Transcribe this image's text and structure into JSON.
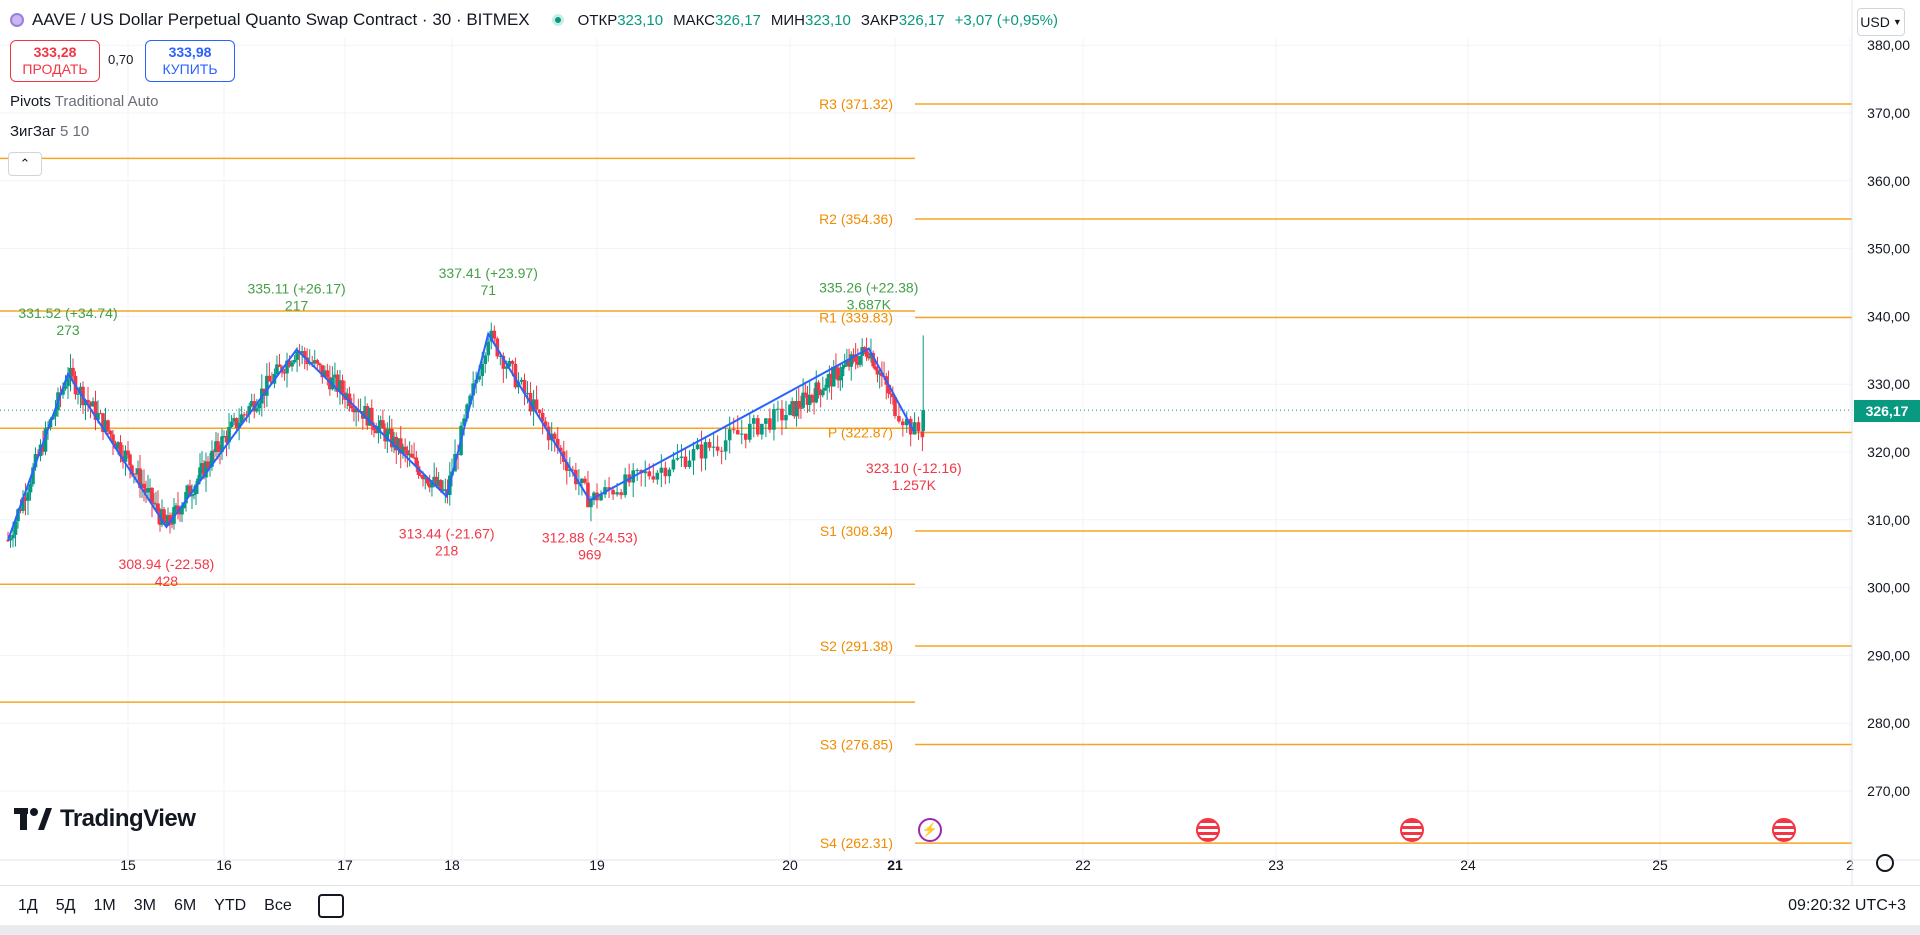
{
  "header": {
    "title": "AAVE / US Dollar Perpetual Quanto Swap Contract · 30 · BITMEX",
    "ohlc": [
      {
        "label": "ОТКР",
        "value": "323,10"
      },
      {
        "label": "МАКС",
        "value": "326,17"
      },
      {
        "label": "МИН",
        "value": "323,10"
      },
      {
        "label": "ЗАКР",
        "value": "326,17"
      }
    ],
    "change": "+3,07 (+0,95%)",
    "currency": "USD"
  },
  "trade": {
    "sell_price": "333,28",
    "sell_label": "ПРОДАТЬ",
    "spread": "0,70",
    "buy_price": "333,98",
    "buy_label": "КУПИТЬ"
  },
  "indicators": [
    {
      "name": "Pivots",
      "params": "Traditional Auto"
    },
    {
      "name": "ЗигЗаг",
      "params": "5 10"
    }
  ],
  "price_tag": "326,17",
  "branding": "TradingView",
  "bottom": {
    "ranges": [
      "1Д",
      "5Д",
      "1М",
      "3М",
      "6М",
      "YTD",
      "Все"
    ],
    "clock": "09:20:32 UTC+3"
  },
  "colors": {
    "up": "#089981",
    "down": "#f23645",
    "zigzag": "#2962ff",
    "pivot": "#f5a623",
    "grid": "#f0f3fa"
  },
  "icons": [
    "aave-symbol-icon",
    "market-open-dot-icon",
    "chevron-up-icon",
    "calendar-range-icon",
    "settings-gear-icon",
    "lightning-event-icon",
    "us-flag-event-icon"
  ],
  "chart_data": {
    "type": "candlestick",
    "y_axis": {
      "ticks": [
        "380,00",
        "370,00",
        "360,00",
        "350,00",
        "340,00",
        "330,00",
        "320,00",
        "310,00",
        "300,00",
        "290,00",
        "280,00",
        "270,00"
      ],
      "ylim": [
        262,
        381
      ]
    },
    "x_axis": {
      "ticks": [
        {
          "label": "15",
          "day": 15
        },
        {
          "label": "16",
          "day": 16
        },
        {
          "label": "17",
          "day": 17
        },
        {
          "label": "18",
          "day": 18
        },
        {
          "label": "19",
          "day": 19
        },
        {
          "label": "20",
          "day": 20
        },
        {
          "label": "21",
          "day": 21,
          "bold": true
        },
        {
          "label": "22",
          "day": 22
        },
        {
          "label": "23",
          "day": 23
        },
        {
          "label": "24",
          "day": 24
        },
        {
          "label": "25",
          "day": 25
        },
        {
          "label": "2",
          "day": 26
        }
      ]
    },
    "current_price": 326.17,
    "pivots": [
      {
        "label": "R3 (371.32)",
        "value": 371.32
      },
      {
        "label": "R2 (354.36)",
        "value": 354.36
      },
      {
        "label": "R1 (339.83)",
        "value": 339.83
      },
      {
        "label": "P (322.87)",
        "value": 322.87
      },
      {
        "label": "S1 (308.34)",
        "value": 308.34
      },
      {
        "label": "S2 (291.38)",
        "value": 291.38
      },
      {
        "label": "S3 (276.85)",
        "value": 276.85
      },
      {
        "label": "S4 (262.31)",
        "value": 262.31
      }
    ],
    "previous_pivots": [
      363.3,
      340.8,
      323.5,
      300.5,
      283.1
    ],
    "zigzag": [
      {
        "x": 14.0,
        "y": 307.0
      },
      {
        "x": 14.5,
        "y": 331.52,
        "label": "331.52 (+34.74)",
        "vol": "273",
        "dir": "up"
      },
      {
        "x": 15.4,
        "y": 308.94,
        "label": "308.94 (-22.58)",
        "vol": "428",
        "dir": "down"
      },
      {
        "x": 16.6,
        "y": 335.11,
        "label": "335.11 (+26.17)",
        "vol": "217",
        "dir": "up"
      },
      {
        "x": 17.95,
        "y": 313.44,
        "label": "313.44 (-21.67)",
        "vol": "218",
        "dir": "down"
      },
      {
        "x": 18.25,
        "y": 337.41,
        "label": "337.41 (+23.97)",
        "vol": "71",
        "dir": "up"
      },
      {
        "x": 18.95,
        "y": 312.88,
        "label": "312.88 (-24.53)",
        "vol": "969",
        "dir": "down"
      },
      {
        "x": 20.75,
        "y": 335.26,
        "label": "335.26 (+22.38)",
        "vol": "3.687K",
        "dir": "up"
      },
      {
        "x": 21.1,
        "y": 323.1,
        "label": "323.10 (-12.16)",
        "vol": "1.257K",
        "dir": "down"
      }
    ]
  }
}
